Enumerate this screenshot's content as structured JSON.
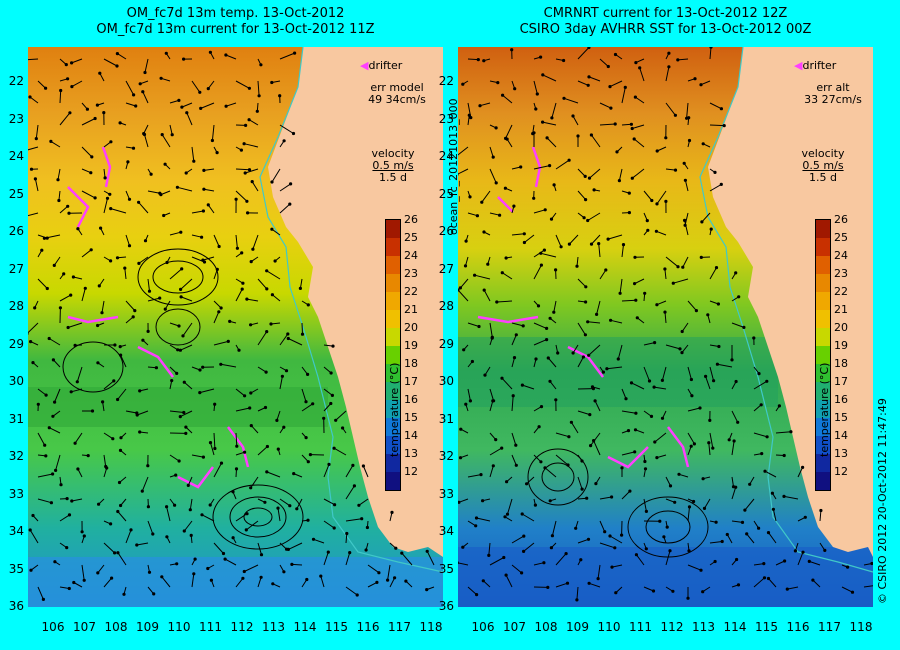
{
  "left": {
    "title_line1": "OM_fc7d 13m temp. 13-Oct-2012",
    "title_line2": "OM_fc7d 13m current for 13-Oct-2012 11Z",
    "drifter_label": "drifter",
    "err_label": "err model",
    "err_value": "49 34cm/s",
    "velocity_label": "velocity",
    "velocity_scale": "0.5 m/s",
    "velocity_time": "1.5 d"
  },
  "right": {
    "title_line1": "CMRNRT current for 13-Oct-2012 12Z",
    "title_line2": "CSIRO 3day AVHRR SST for 13-Oct-2012 00Z",
    "drifter_label": "drifter",
    "err_label": "err alt",
    "err_value": "33 27cm/s",
    "velocity_label": "velocity",
    "velocity_scale": "0.5 m/s",
    "velocity_time": "1.5 d"
  },
  "map": {
    "lat_ticks": [
      "22",
      "23",
      "24",
      "25",
      "26",
      "27",
      "28",
      "29",
      "30",
      "31",
      "32",
      "33",
      "34",
      "35",
      "36"
    ],
    "lon_ticks": [
      "106",
      "107",
      "108",
      "109",
      "110",
      "111",
      "112",
      "113",
      "114",
      "115",
      "116",
      "117",
      "118"
    ],
    "lat_range": [
      21.3,
      36.6
    ],
    "lon_range": [
      105.3,
      118.3
    ]
  },
  "colorbar": {
    "title": "temperature (°C)",
    "ticks": [
      "26",
      "25",
      "24",
      "23",
      "22",
      "21",
      "20",
      "19",
      "18",
      "17",
      "16",
      "15",
      "14",
      "13",
      "12"
    ],
    "colors": [
      "#a01800",
      "#c83000",
      "#e06000",
      "#e88800",
      "#f0a800",
      "#f0c000",
      "#c8d800",
      "#68d000",
      "#30c030",
      "#20b070",
      "#10a0b0",
      "#1078d8",
      "#1050c8",
      "#1028a0",
      "#101080"
    ]
  },
  "side_text_left": "ocean_fc_20121013_000",
  "side_text_right": "© CSIRO 2012   20-Oct-2012 11:47:49",
  "colors": {
    "background": "#00ffff",
    "land": "#f8c8a0",
    "drifter": "#ff40ff",
    "coast_line": "#40c8c8",
    "arrow": "#000000"
  }
}
